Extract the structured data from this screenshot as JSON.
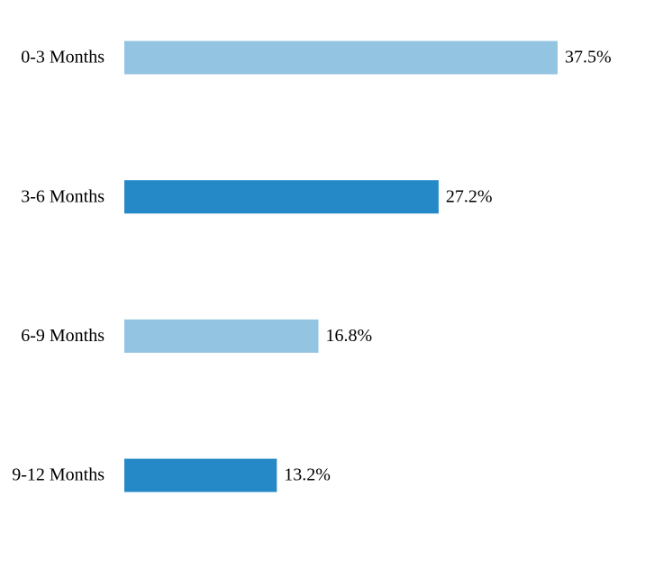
{
  "chart_data": {
    "type": "bar",
    "orientation": "horizontal",
    "categories": [
      "0-3 Months",
      "3-6 Months",
      "6-9 Months",
      "9-12 Months"
    ],
    "values": [
      37.5,
      27.2,
      16.8,
      13.2
    ],
    "value_labels": [
      "37.5%",
      "27.2%",
      "16.8%",
      "13.2%"
    ],
    "colors": [
      "#93c4e2",
      "#2589c7",
      "#93c4e2",
      "#2589c7"
    ]
  }
}
